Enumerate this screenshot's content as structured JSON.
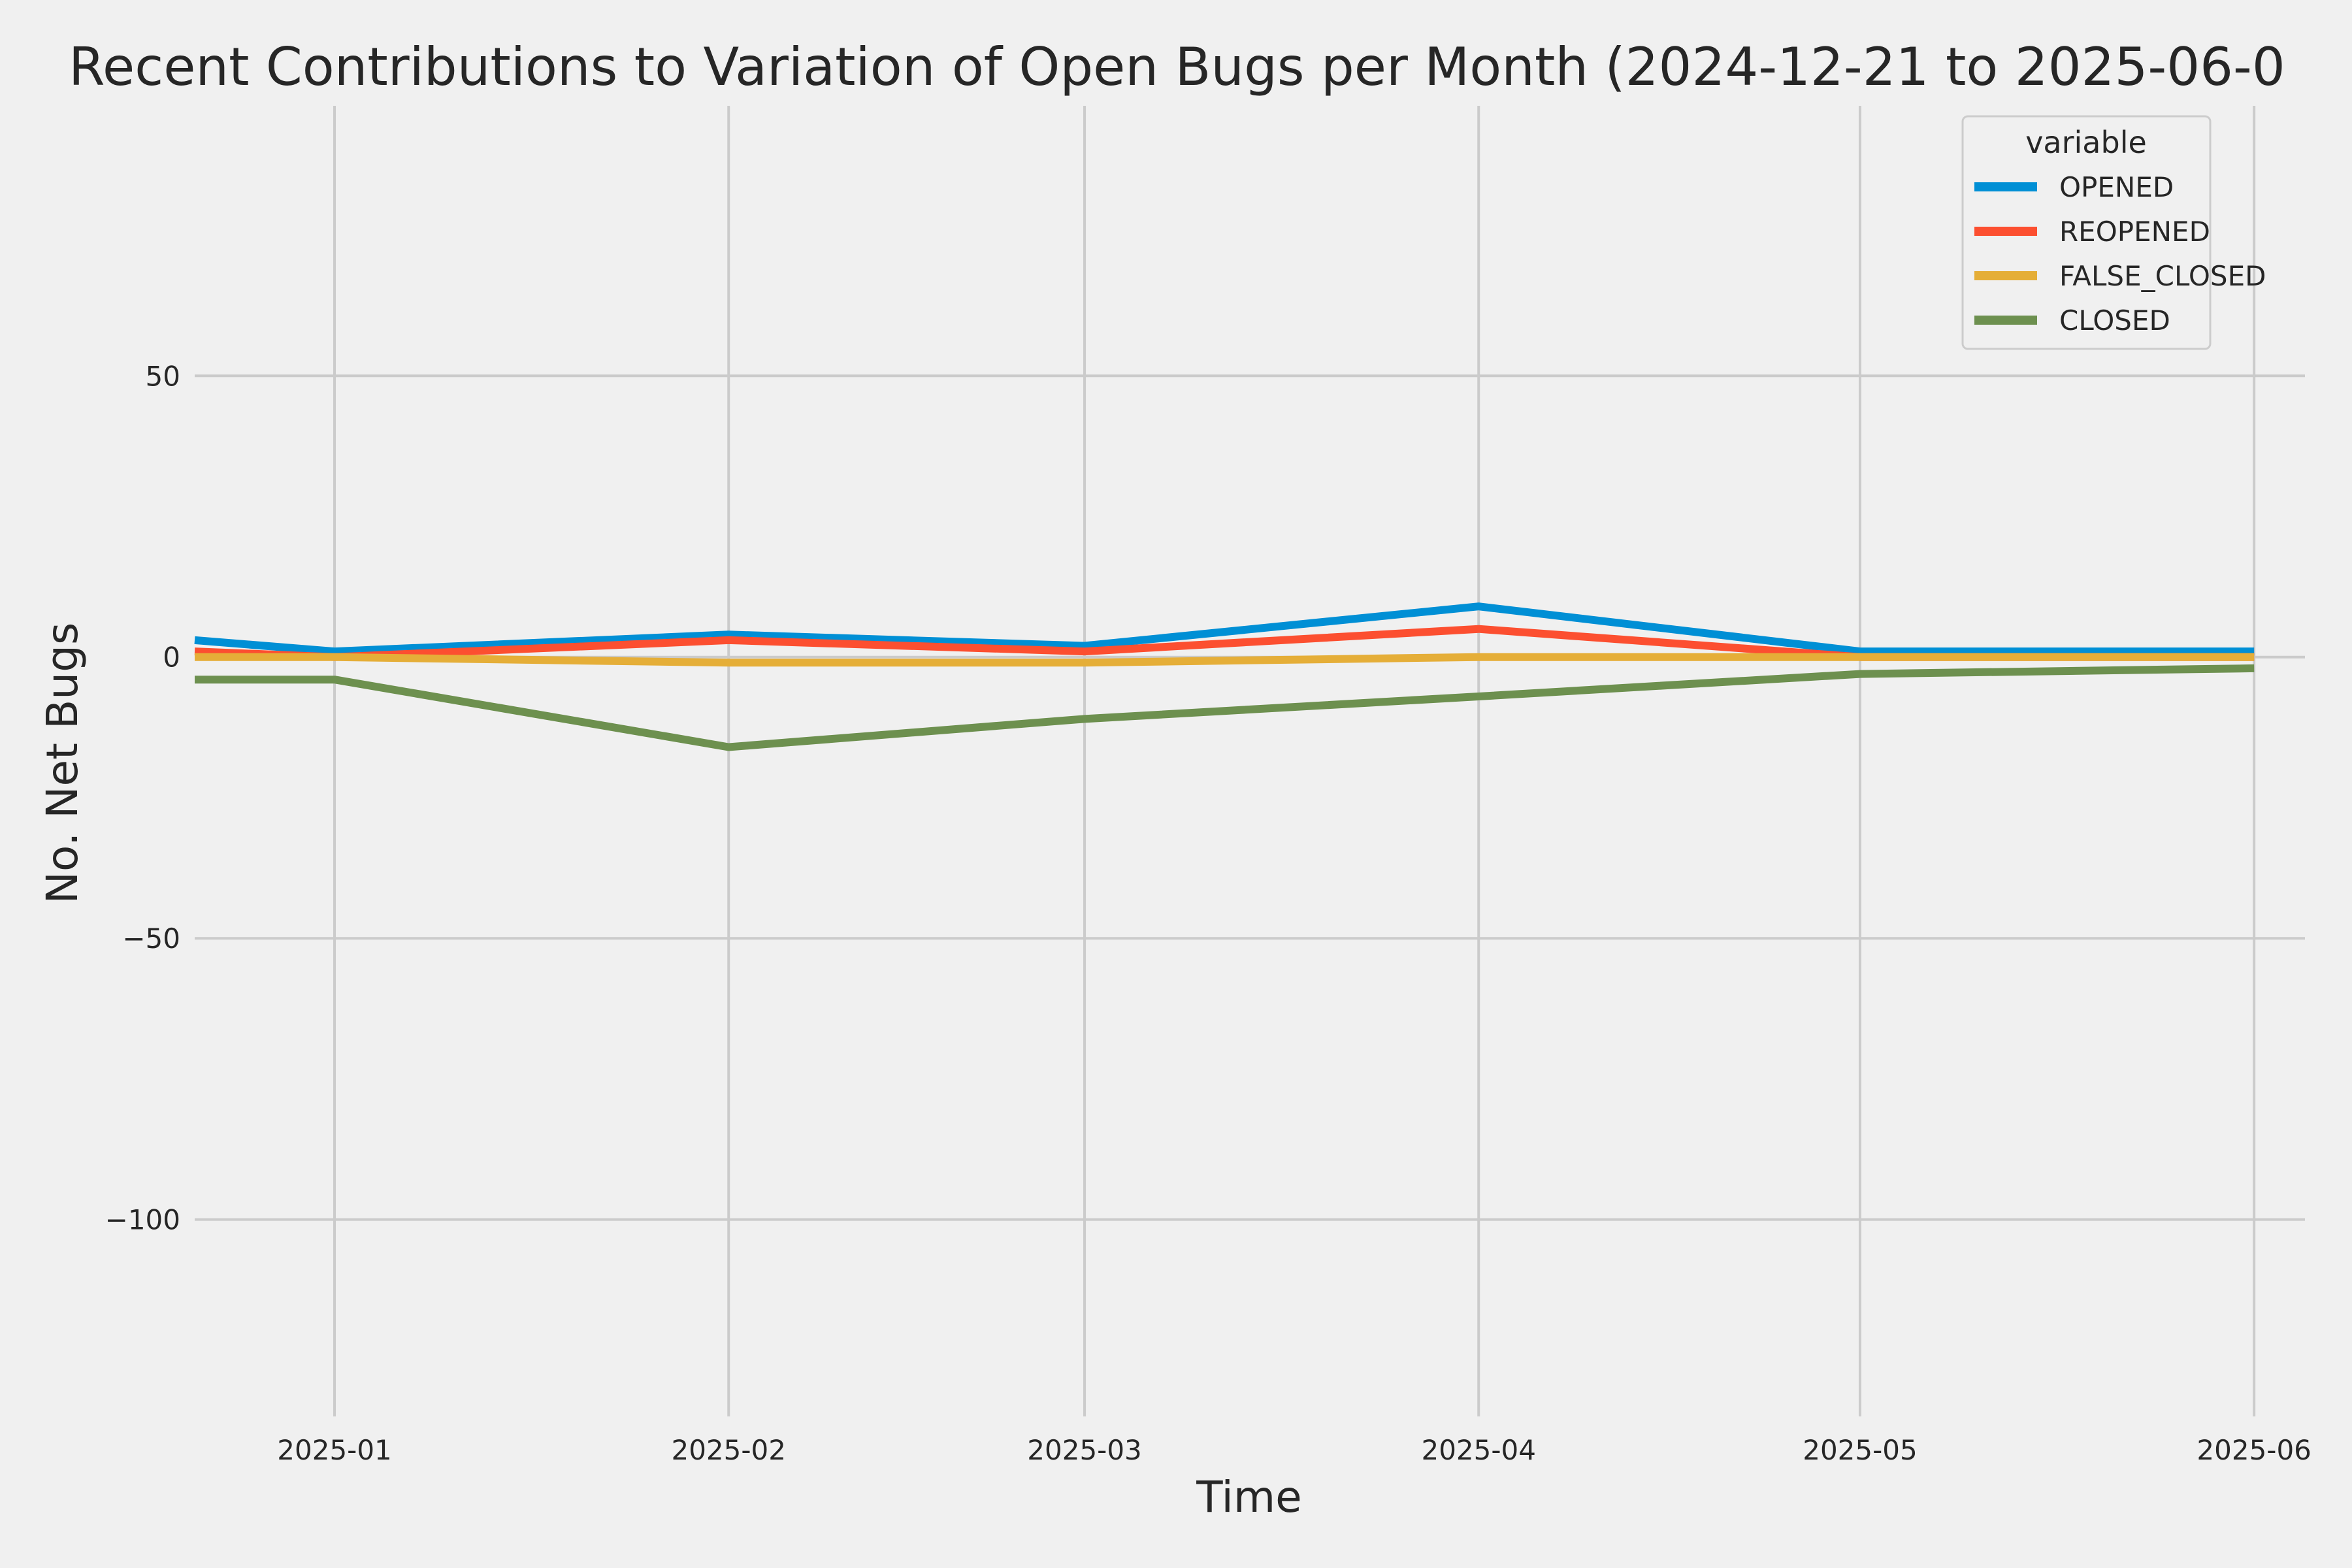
{
  "chart_data": {
    "type": "line",
    "title": "Recent Contributions to Variation of Open Bugs per Month (2024-12-21 to 2025-06-0",
    "xlabel": "Time",
    "ylabel": "No. Net Bugs",
    "x": [
      "2024-12-21",
      "2025-01-01",
      "2025-02-01",
      "2025-03-01",
      "2025-04-01",
      "2025-05-01",
      "2025-06-01"
    ],
    "x_ticks": [
      {
        "date": "2025-01-01",
        "label": "2025-01"
      },
      {
        "date": "2025-02-01",
        "label": "2025-02"
      },
      {
        "date": "2025-03-01",
        "label": "2025-03"
      },
      {
        "date": "2025-04-01",
        "label": "2025-04"
      },
      {
        "date": "2025-05-01",
        "label": "2025-05"
      },
      {
        "date": "2025-06-01",
        "label": "2025-06"
      }
    ],
    "xlim": [
      "2024-12-21",
      "2025-06-05"
    ],
    "y_ticks": [
      {
        "value": 50,
        "label": "50"
      },
      {
        "value": 0,
        "label": "0"
      },
      {
        "value": -50,
        "label": "−50"
      },
      {
        "value": -100,
        "label": "−100"
      }
    ],
    "ylim": [
      -135,
      98
    ],
    "grid": true,
    "legend": {
      "title": "variable",
      "placement": "top-right"
    },
    "series": [
      {
        "name": "OPENED",
        "color": "#008fd5",
        "values": [
          3,
          1,
          4,
          2,
          9,
          1,
          1
        ]
      },
      {
        "name": "REOPENED",
        "color": "#fc4f30",
        "values": [
          1,
          0,
          3,
          1,
          5,
          0,
          0
        ]
      },
      {
        "name": "FALSE_CLOSED",
        "color": "#e5ae38",
        "values": [
          0,
          0,
          -1,
          -1,
          0,
          0,
          0
        ]
      },
      {
        "name": "CLOSED",
        "color": "#6d904f",
        "values": [
          -4,
          -4,
          -16,
          -11,
          -7,
          -3,
          -2
        ]
      }
    ]
  }
}
